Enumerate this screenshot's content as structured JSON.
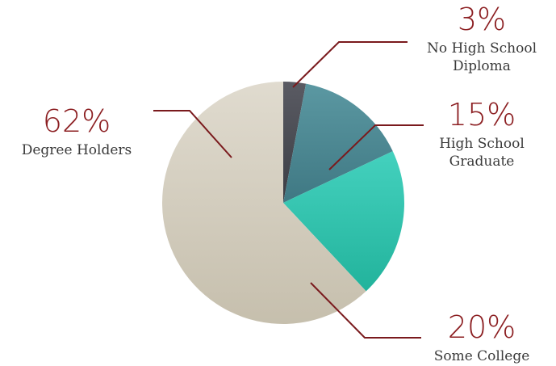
{
  "chart_data": {
    "type": "pie",
    "title": "",
    "slices": [
      {
        "key": "no-high-school-diploma",
        "pct_label": "3%",
        "value": 3,
        "label_lines": [
          "No High School",
          "Diploma"
        ],
        "color": "#4a4c54"
      },
      {
        "key": "high-school-graduate",
        "pct_label": "15%",
        "value": 15,
        "label_lines": [
          "High School",
          "Graduate"
        ],
        "color": "#4f8a95"
      },
      {
        "key": "some-college",
        "pct_label": "20%",
        "value": 20,
        "label_lines": [
          "Some College"
        ],
        "color": "#2ec4ad"
      },
      {
        "key": "degree-holders",
        "pct_label": "62%",
        "value": 62,
        "label_lines": [
          "Degree Holders"
        ],
        "color": "#d3cdbd"
      }
    ]
  }
}
